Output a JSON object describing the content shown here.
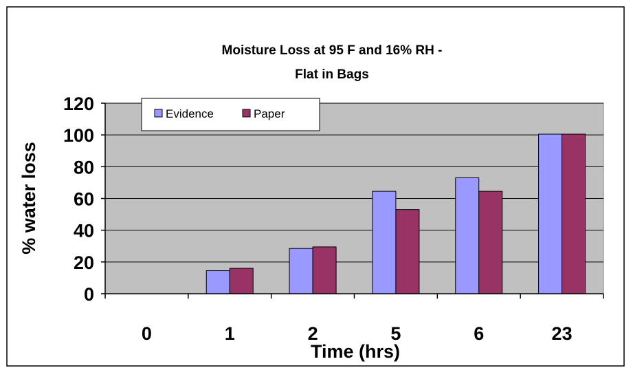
{
  "chart_data": {
    "type": "bar",
    "title_line1": "Moisture Loss at 95 F and 16% RH -",
    "title_line2": "Flat in Bags",
    "xlabel": "Time (hrs)",
    "ylabel": "% water loss",
    "categories": [
      "0",
      "1",
      "2",
      "5",
      "6",
      "23"
    ],
    "series": [
      {
        "name": "Evidence",
        "values": [
          0,
          14.5,
          28.5,
          64.5,
          73,
          100.5
        ],
        "color": "#9999ff"
      },
      {
        "name": "Paper",
        "values": [
          0,
          16,
          29.5,
          53,
          64.5,
          100.5
        ],
        "color": "#993366"
      }
    ],
    "ylim": [
      0,
      120
    ],
    "yticks": [
      "0",
      "20",
      "40",
      "60",
      "80",
      "100",
      "120"
    ],
    "grid": true,
    "plot_background": "#c0c0c0",
    "legend_position": "top-left"
  }
}
